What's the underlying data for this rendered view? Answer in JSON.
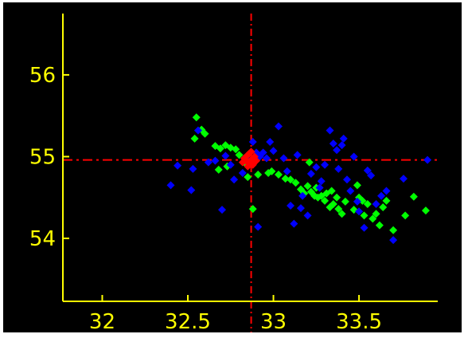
{
  "chart_data": {
    "type": "scatter",
    "xlim": [
      31.77,
      33.96
    ],
    "ylim": [
      53.23,
      56.75
    ],
    "x_ticks": [
      32,
      32.5,
      33,
      33.5
    ],
    "x_tick_labels": [
      "32",
      "32.5",
      "33",
      "33.5"
    ],
    "y_ticks": [
      54,
      55,
      56
    ],
    "y_tick_labels": [
      "54",
      "55",
      "56"
    ],
    "grid": false,
    "legend": "none",
    "colors": {
      "background": "#000000",
      "axes": "#ffff00",
      "tick_labels": "#ffff00",
      "crosshair": "#ff0000",
      "outer_border": "#ffffff"
    },
    "crosshair": {
      "x": 32.87,
      "y": 54.96,
      "style": "dash-dot"
    },
    "series": [
      {
        "color": "#00ff00",
        "marker": "diamond",
        "points": [
          [
            32.55,
            55.48
          ],
          [
            32.58,
            55.33
          ],
          [
            32.54,
            55.22
          ],
          [
            32.6,
            55.28
          ],
          [
            32.66,
            55.13
          ],
          [
            32.69,
            55.1
          ],
          [
            32.72,
            55.14
          ],
          [
            32.75,
            55.11
          ],
          [
            32.78,
            55.09
          ],
          [
            32.8,
            55.02
          ],
          [
            32.73,
            54.88
          ],
          [
            32.68,
            54.84
          ],
          [
            32.83,
            54.93
          ],
          [
            32.85,
            54.75
          ],
          [
            32.91,
            54.78
          ],
          [
            32.97,
            54.8
          ],
          [
            32.99,
            54.82
          ],
          [
            33.03,
            54.78
          ],
          [
            33.07,
            54.73
          ],
          [
            33.1,
            54.72
          ],
          [
            33.13,
            54.68
          ],
          [
            33.16,
            54.6
          ],
          [
            33.18,
            54.55
          ],
          [
            33.2,
            54.64
          ],
          [
            33.22,
            54.57
          ],
          [
            33.24,
            54.52
          ],
          [
            33.26,
            54.5
          ],
          [
            33.28,
            54.52
          ],
          [
            33.3,
            54.46
          ],
          [
            33.31,
            54.55
          ],
          [
            33.33,
            54.38
          ],
          [
            33.34,
            54.58
          ],
          [
            33.35,
            54.42
          ],
          [
            33.37,
            54.5
          ],
          [
            33.38,
            54.36
          ],
          [
            33.4,
            54.3
          ],
          [
            33.42,
            54.45
          ],
          [
            33.47,
            54.35
          ],
          [
            33.49,
            54.65
          ],
          [
            33.5,
            54.5
          ],
          [
            33.52,
            54.46
          ],
          [
            33.53,
            54.28
          ],
          [
            33.55,
            54.42
          ],
          [
            33.58,
            54.24
          ],
          [
            33.6,
            54.3
          ],
          [
            33.62,
            54.16
          ],
          [
            33.64,
            54.38
          ],
          [
            33.66,
            54.46
          ],
          [
            33.7,
            54.1
          ],
          [
            33.77,
            54.28
          ],
          [
            33.82,
            54.51
          ],
          [
            33.89,
            54.34
          ],
          [
            32.88,
            54.36
          ],
          [
            33.21,
            54.93
          ],
          [
            33.25,
            54.62
          ]
        ]
      },
      {
        "color": "#0000ff",
        "marker": "diamond",
        "points": [
          [
            32.4,
            54.65
          ],
          [
            32.44,
            54.89
          ],
          [
            32.53,
            54.85
          ],
          [
            32.52,
            54.59
          ],
          [
            32.56,
            55.32
          ],
          [
            32.62,
            54.93
          ],
          [
            32.66,
            54.95
          ],
          [
            32.72,
            55.01
          ],
          [
            32.75,
            54.9
          ],
          [
            32.7,
            54.35
          ],
          [
            32.77,
            54.72
          ],
          [
            32.82,
            54.8
          ],
          [
            32.88,
            55.18
          ],
          [
            32.9,
            55.05
          ],
          [
            32.92,
            55.0
          ],
          [
            32.94,
            55.05
          ],
          [
            32.96,
            54.98
          ],
          [
            32.98,
            55.18
          ],
          [
            33.0,
            55.07
          ],
          [
            33.03,
            55.37
          ],
          [
            33.06,
            54.98
          ],
          [
            33.08,
            54.82
          ],
          [
            33.1,
            54.4
          ],
          [
            33.12,
            54.18
          ],
          [
            33.14,
            55.02
          ],
          [
            33.16,
            54.37
          ],
          [
            33.2,
            54.28
          ],
          [
            33.22,
            54.79
          ],
          [
            33.25,
            54.87
          ],
          [
            33.27,
            54.62
          ],
          [
            33.3,
            54.9
          ],
          [
            33.33,
            55.32
          ],
          [
            33.35,
            55.16
          ],
          [
            33.37,
            55.08
          ],
          [
            33.38,
            54.85
          ],
          [
            33.4,
            55.14
          ],
          [
            33.41,
            55.22
          ],
          [
            33.43,
            54.72
          ],
          [
            33.45,
            54.58
          ],
          [
            33.47,
            55.0
          ],
          [
            33.49,
            54.45
          ],
          [
            33.5,
            54.33
          ],
          [
            33.53,
            54.13
          ],
          [
            33.55,
            54.83
          ],
          [
            33.57,
            54.77
          ],
          [
            33.6,
            54.42
          ],
          [
            33.63,
            54.52
          ],
          [
            33.66,
            54.58
          ],
          [
            33.7,
            53.98
          ],
          [
            33.76,
            54.73
          ],
          [
            33.9,
            54.96
          ],
          [
            32.91,
            54.14
          ],
          [
            33.17,
            54.52
          ],
          [
            33.28,
            54.7
          ],
          [
            32.84,
            54.98
          ]
        ]
      },
      {
        "color": "#ff0000",
        "marker": "diamond",
        "points": [
          [
            32.83,
            54.98
          ],
          [
            32.85,
            55.02
          ],
          [
            32.87,
            54.96
          ],
          [
            32.86,
            54.92
          ],
          [
            32.89,
            55.0
          ],
          [
            32.84,
            54.95
          ],
          [
            32.88,
            54.9
          ],
          [
            32.86,
            55.04
          ],
          [
            32.82,
            54.93
          ],
          [
            32.9,
            54.95
          ],
          [
            32.87,
            55.06
          ],
          [
            32.85,
            54.88
          ]
        ]
      }
    ]
  }
}
